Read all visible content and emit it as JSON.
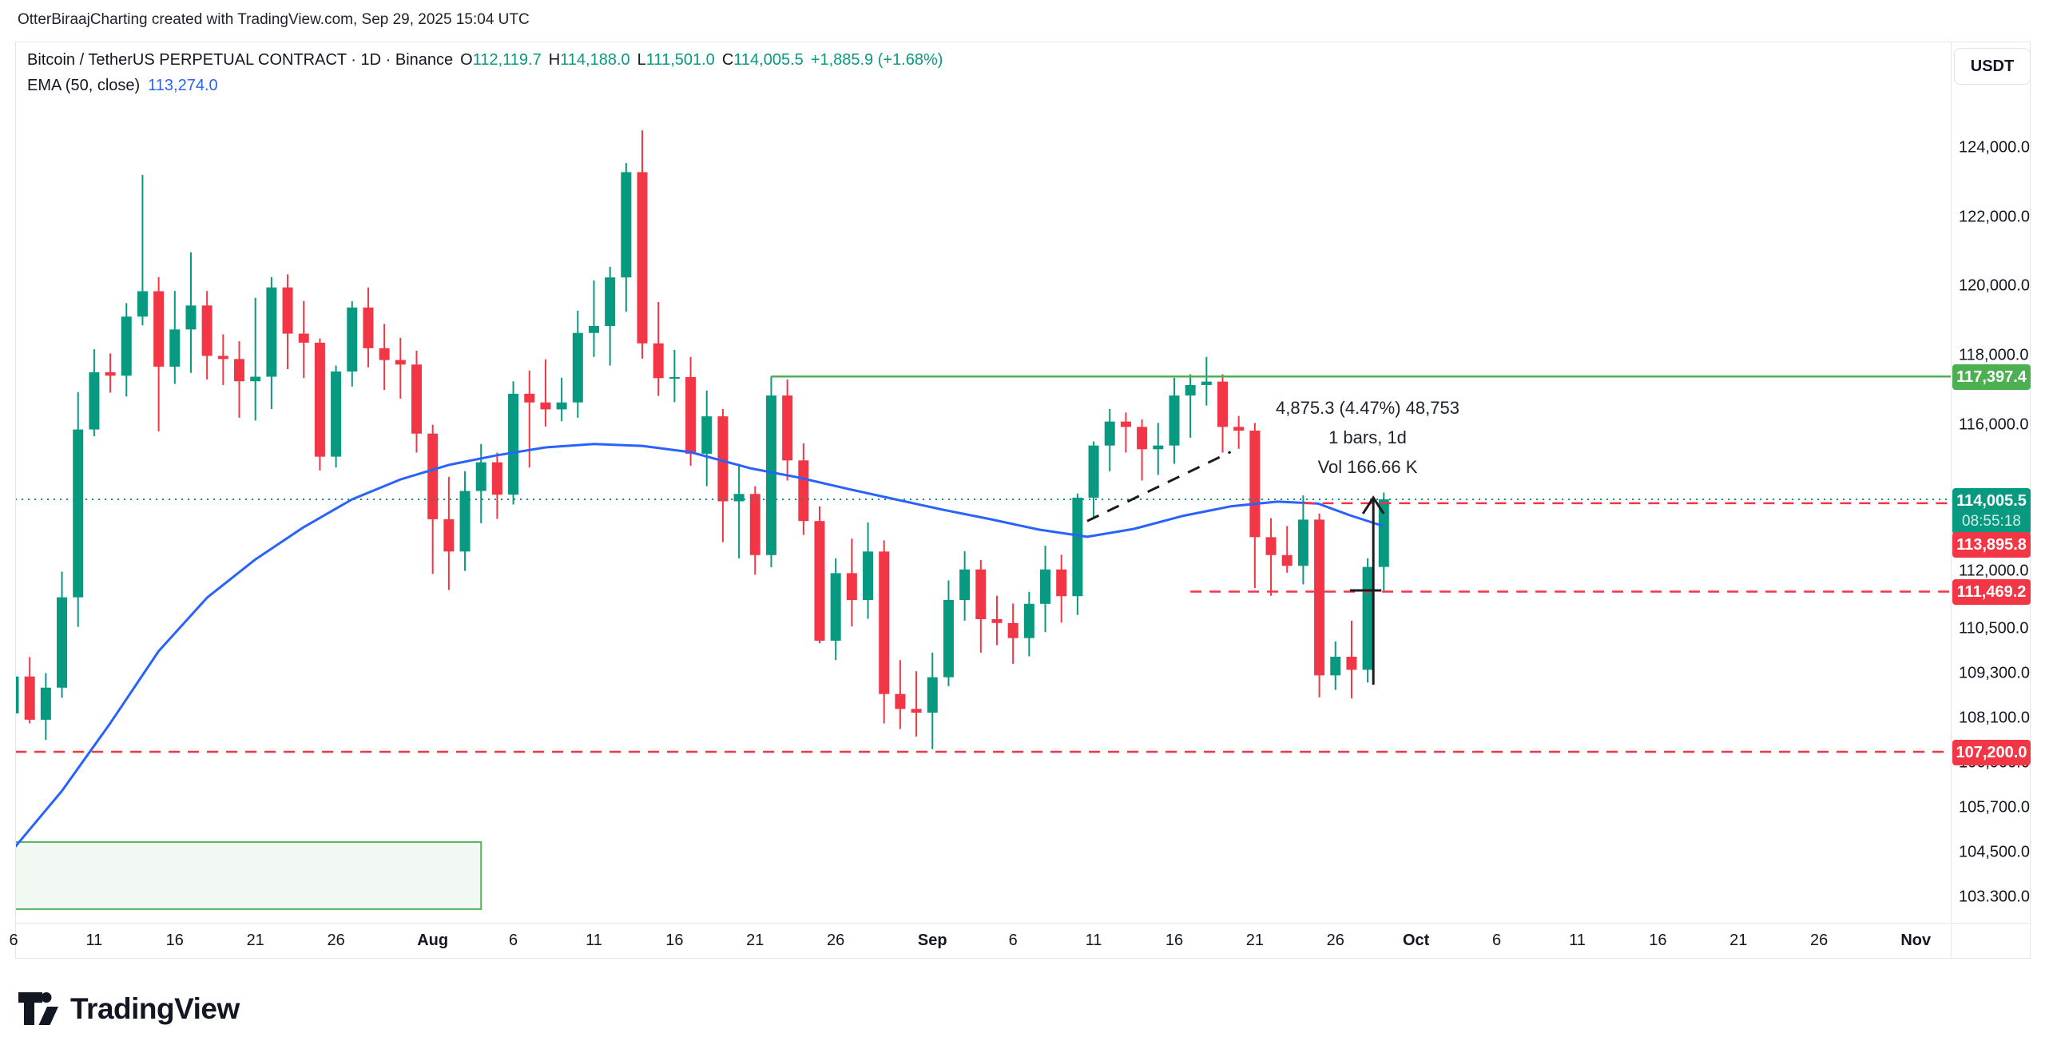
{
  "attribution": "OtterBiraajCharting created with TradingView.com, Sep 29, 2025 15:04 UTC",
  "header": {
    "symbol_title": "Bitcoin / TetherUS PERPETUAL CONTRACT · 1D · Binance",
    "ohlc": {
      "o_label": "O",
      "o": "112,119.7",
      "h_label": "H",
      "h": "114,188.0",
      "l_label": "L",
      "l": "111,501.0",
      "c_label": "C",
      "c": "114,005.5",
      "change": "+1,885.9 (+1.68%)"
    },
    "indicator": {
      "name": "EMA (50, close)",
      "value": "113,274.0"
    }
  },
  "axis_right": {
    "currency_button": "USDT",
    "ticks": [
      {
        "label": "124,000.0",
        "price": 124000
      },
      {
        "label": "122,000.0",
        "price": 122000
      },
      {
        "label": "120,000.0",
        "price": 120000
      },
      {
        "label": "118,000.0",
        "price": 118000
      },
      {
        "label": "116,000.0",
        "price": 116000
      },
      {
        "label": "112,000.0",
        "price": 112000
      },
      {
        "label": "110,500.0",
        "price": 110500
      },
      {
        "label": "109,300.0",
        "price": 109300
      },
      {
        "label": "108,100.0",
        "price": 108100
      },
      {
        "label": "106,900.0",
        "price": 106900
      },
      {
        "label": "105,700.0",
        "price": 105700
      },
      {
        "label": "104,500.0",
        "price": 104500
      },
      {
        "label": "103.300.0",
        "price": 103300
      }
    ],
    "badges": [
      {
        "label": "117,397.4",
        "price": 117397.4,
        "bg": "#4caf50"
      },
      {
        "label": "114,005.5",
        "sub": "08:55:18",
        "price": 114005.5,
        "bg": "#089981",
        "two_row": true
      },
      {
        "label": "113,895.8",
        "price": 113895.8,
        "bg": "#f23645",
        "y_override": 666
      },
      {
        "label": "111,469.2",
        "price": 111469.2,
        "bg": "#f23645"
      },
      {
        "label": "107,200.0",
        "price": 107200.0,
        "bg": "#f23645"
      }
    ]
  },
  "axis_bottom": {
    "labels": [
      {
        "text": "6",
        "day": 0
      },
      {
        "text": "11",
        "day": 5
      },
      {
        "text": "16",
        "day": 10
      },
      {
        "text": "21",
        "day": 15
      },
      {
        "text": "26",
        "day": 20
      },
      {
        "text": "Aug",
        "day": 26,
        "bold": true
      },
      {
        "text": "6",
        "day": 31
      },
      {
        "text": "11",
        "day": 36
      },
      {
        "text": "16",
        "day": 41
      },
      {
        "text": "21",
        "day": 46
      },
      {
        "text": "26",
        "day": 51
      },
      {
        "text": "Sep",
        "day": 57,
        "bold": true
      },
      {
        "text": "6",
        "day": 62
      },
      {
        "text": "11",
        "day": 67
      },
      {
        "text": "16",
        "day": 72
      },
      {
        "text": "21",
        "day": 77
      },
      {
        "text": "26",
        "day": 82
      },
      {
        "text": "Oct",
        "day": 87,
        "bold": true
      },
      {
        "text": "6",
        "day": 92
      },
      {
        "text": "11",
        "day": 97
      },
      {
        "text": "16",
        "day": 102
      },
      {
        "text": "21",
        "day": 107
      },
      {
        "text": "26",
        "day": 112
      },
      {
        "text": "Nov",
        "day": 118,
        "bold": true
      }
    ]
  },
  "measure_tooltip": {
    "line1": "4,875.3 (4.47%) 48,753",
    "line2": "1 bars, 1d",
    "line3": "Vol 166.66 K"
  },
  "watermark": {
    "brand": "TradingView"
  },
  "colors": {
    "up": "#089981",
    "down": "#f23645",
    "ema": "#2962ff",
    "ray_green": "#4caf50",
    "close_dotted": "#089981",
    "red_dashed": "#f23645",
    "drawing_black": "#1c1c20",
    "zone_border": "#58b35c",
    "zone_fill": "rgba(88,179,92,0.08)",
    "axis_text": "#131722",
    "border": "#e4e6ec"
  },
  "chart_data": {
    "type": "candlestick",
    "symbol": "Bitcoin / TetherUS Perpetual (Binance)",
    "interval": "1D",
    "ylim": [
      102500,
      125600
    ],
    "candles": [
      [
        "Jul 6",
        108230,
        109650,
        107450,
        109220
      ],
      [
        "Jul 7",
        109220,
        109740,
        107960,
        108060
      ],
      [
        "Jul 8",
        108060,
        109310,
        107520,
        108920
      ],
      [
        "Jul 9",
        108920,
        111990,
        108650,
        111320
      ],
      [
        "Jul 10",
        111320,
        116950,
        110550,
        115880
      ],
      [
        "Jul 11",
        115880,
        118180,
        115700,
        117520
      ],
      [
        "Jul 12",
        117520,
        118060,
        116930,
        117420
      ],
      [
        "Jul 13",
        117420,
        119510,
        116820,
        119120
      ],
      [
        "Jul 14",
        119120,
        123220,
        118870,
        119850
      ],
      [
        "Jul 15",
        119850,
        120260,
        115830,
        117680
      ],
      [
        "Jul 16",
        117680,
        119860,
        117180,
        118750
      ],
      [
        "Jul 17",
        118750,
        120980,
        117500,
        119440
      ],
      [
        "Jul 18",
        119440,
        119860,
        117310,
        117990
      ],
      [
        "Jul 19",
        117990,
        118610,
        117150,
        117900
      ],
      [
        "Jul 20",
        117900,
        118410,
        116210,
        117260
      ],
      [
        "Jul 21",
        117260,
        119660,
        116130,
        117390
      ],
      [
        "Jul 22",
        117390,
        120260,
        116460,
        119960
      ],
      [
        "Jul 23",
        119960,
        120340,
        117610,
        118630
      ],
      [
        "Jul 24",
        118630,
        119570,
        117350,
        118370
      ],
      [
        "Jul 25",
        118370,
        118490,
        114780,
        115150
      ],
      [
        "Jul 26",
        115150,
        117710,
        114860,
        117540
      ],
      [
        "Jul 27",
        117540,
        119560,
        117110,
        119380
      ],
      [
        "Jul 28",
        119380,
        119960,
        117660,
        118210
      ],
      [
        "Jul 29",
        118210,
        118910,
        117010,
        117870
      ],
      [
        "Jul 30",
        117870,
        118510,
        116760,
        117740
      ],
      [
        "Jul 31",
        117740,
        118140,
        115260,
        115770
      ],
      [
        "Aug 1",
        115770,
        116010,
        111930,
        113450
      ],
      [
        "Aug 2",
        113450,
        114610,
        111510,
        112550
      ],
      [
        "Aug 3",
        112550,
        114760,
        112010,
        114230
      ],
      [
        "Aug 4",
        114230,
        115490,
        113340,
        115000
      ],
      [
        "Aug 5",
        115000,
        115260,
        113460,
        114130
      ],
      [
        "Aug 6",
        114130,
        117260,
        113860,
        116900
      ],
      [
        "Aug 7",
        116900,
        117570,
        114860,
        116650
      ],
      [
        "Aug 8",
        116650,
        117890,
        115960,
        116450
      ],
      [
        "Aug 9",
        116450,
        117360,
        116110,
        116650
      ],
      [
        "Aug 10",
        116650,
        119290,
        116210,
        118650
      ],
      [
        "Aug 11",
        118650,
        120160,
        117960,
        118850
      ],
      [
        "Aug 12",
        118850,
        120560,
        117710,
        120250
      ],
      [
        "Aug 13",
        120250,
        123560,
        119260,
        123300
      ],
      [
        "Aug 14",
        123300,
        124500,
        117910,
        118350
      ],
      [
        "Aug 15",
        118350,
        119540,
        116840,
        117350
      ],
      [
        "Aug 16",
        117350,
        118160,
        116660,
        117380
      ],
      [
        "Aug 17",
        117380,
        117960,
        114910,
        115230
      ],
      [
        "Aug 18",
        115230,
        116990,
        114360,
        116250
      ],
      [
        "Aug 19",
        116250,
        116460,
        112810,
        113950
      ],
      [
        "Aug 20",
        113950,
        114960,
        112360,
        114150
      ],
      [
        "Aug 21",
        114150,
        114360,
        111910,
        112450
      ],
      [
        "Aug 22",
        112450,
        117397,
        112110,
        116850
      ],
      [
        "Aug 23",
        116850,
        117310,
        114510,
        115050
      ],
      [
        "Aug 24",
        115050,
        115510,
        113010,
        113400
      ],
      [
        "Aug 25",
        113400,
        113810,
        110110,
        110180
      ],
      [
        "Aug 26",
        110180,
        112360,
        109660,
        111950
      ],
      [
        "Aug 27",
        111950,
        112910,
        110560,
        111250
      ],
      [
        "Aug 28",
        111250,
        113360,
        110760,
        112550
      ],
      [
        "Aug 29",
        112550,
        112860,
        107960,
        108750
      ],
      [
        "Aug 30",
        108750,
        109660,
        107810,
        108350
      ],
      [
        "Aug 31",
        108350,
        109360,
        107610,
        108250
      ],
      [
        "Sep 1",
        108250,
        109860,
        107270,
        109200
      ],
      [
        "Sep 2",
        109200,
        111760,
        108960,
        111250
      ],
      [
        "Sep 3",
        111250,
        112560,
        110710,
        112050
      ],
      [
        "Sep 4",
        112050,
        112310,
        109860,
        110750
      ],
      [
        "Sep 5",
        110750,
        111360,
        110060,
        110650
      ],
      [
        "Sep 6",
        110650,
        111160,
        109560,
        110250
      ],
      [
        "Sep 7",
        110250,
        111460,
        109760,
        111150
      ],
      [
        "Sep 8",
        111150,
        112710,
        110410,
        112050
      ],
      [
        "Sep 9",
        112050,
        112460,
        110660,
        111350
      ],
      [
        "Sep 10",
        111350,
        114160,
        110860,
        114050
      ],
      [
        "Sep 11",
        114050,
        115560,
        113460,
        115450
      ],
      [
        "Sep 12",
        115450,
        116460,
        114760,
        116100
      ],
      [
        "Sep 13",
        116100,
        116360,
        115260,
        115950
      ],
      [
        "Sep 14",
        115950,
        116160,
        114510,
        115350
      ],
      [
        "Sep 15",
        115350,
        116060,
        114660,
        115450
      ],
      [
        "Sep 16",
        115450,
        117360,
        114960,
        116850
      ],
      [
        "Sep 17",
        116850,
        117460,
        115660,
        117150
      ],
      [
        "Sep 18",
        117150,
        117960,
        116560,
        117250
      ],
      [
        "Sep 19",
        117250,
        117460,
        115260,
        115950
      ],
      [
        "Sep 20",
        115950,
        116260,
        115360,
        115850
      ],
      [
        "Sep 21",
        115850,
        116060,
        111560,
        112950
      ],
      [
        "Sep 22",
        112950,
        113480,
        111360,
        112450
      ],
      [
        "Sep 23",
        112450,
        113260,
        111960,
        112150
      ],
      [
        "Sep 24",
        112150,
        114110,
        111660,
        113440
      ],
      [
        "Sep 25",
        113440,
        113610,
        108660,
        109250
      ],
      [
        "Sep 26",
        109250,
        110160,
        108860,
        109750
      ],
      [
        "Sep 27",
        109750,
        110710,
        108630,
        109400
      ],
      [
        "Sep 28",
        109400,
        112360,
        109060,
        112120
      ],
      [
        "Sep 29",
        112119.7,
        114188.0,
        111501.0,
        114005.5
      ]
    ],
    "series": [
      {
        "name": "EMA 50",
        "points": [
          [
            0,
            104600
          ],
          [
            3,
            106150
          ],
          [
            6,
            107970
          ],
          [
            9,
            109900
          ],
          [
            12,
            111310
          ],
          [
            15,
            112330
          ],
          [
            18,
            113230
          ],
          [
            21,
            114005
          ],
          [
            24,
            114540
          ],
          [
            27,
            114930
          ],
          [
            30,
            115190
          ],
          [
            33,
            115400
          ],
          [
            36,
            115490
          ],
          [
            39,
            115440
          ],
          [
            42,
            115270
          ],
          [
            45.7,
            114840
          ],
          [
            48.7,
            114590
          ],
          [
            51.7,
            114290
          ],
          [
            54.7,
            114005
          ],
          [
            57.6,
            113720
          ],
          [
            60.6,
            113450
          ],
          [
            63.6,
            113160
          ],
          [
            66.6,
            112960
          ],
          [
            69.5,
            113180
          ],
          [
            72.5,
            113540
          ],
          [
            75.5,
            113810
          ],
          [
            78.4,
            113940
          ],
          [
            80.9,
            113890
          ],
          [
            82.9,
            113560
          ],
          [
            84.9,
            113270
          ]
        ]
      }
    ],
    "annotations": {
      "green_ray": {
        "price": 117397.4,
        "from_day": 47
      },
      "close_dotted_line": {
        "price": 114005.5
      },
      "red_dashed_ray_1": {
        "price": 113895.8,
        "from_day": 80
      },
      "red_dashed_ray_2": {
        "price": 111469.2,
        "from_day": 73
      },
      "red_dashed_full_line": {
        "price": 107200.0
      },
      "black_dashed_trendline": {
        "from": [
          66.6,
          113400
        ],
        "to": [
          75.5,
          115280
        ]
      },
      "up_arrow": {
        "day": 84.35,
        "from_price": 109000,
        "to_price": 114050
      },
      "black_tick_segment": {
        "price": 111501,
        "from_day": 82.9,
        "to_day": 84.85
      },
      "green_zone_box": {
        "from_day": 0.1,
        "to_day": 29,
        "top_price": 104780,
        "bottom_price": 102980
      }
    }
  }
}
